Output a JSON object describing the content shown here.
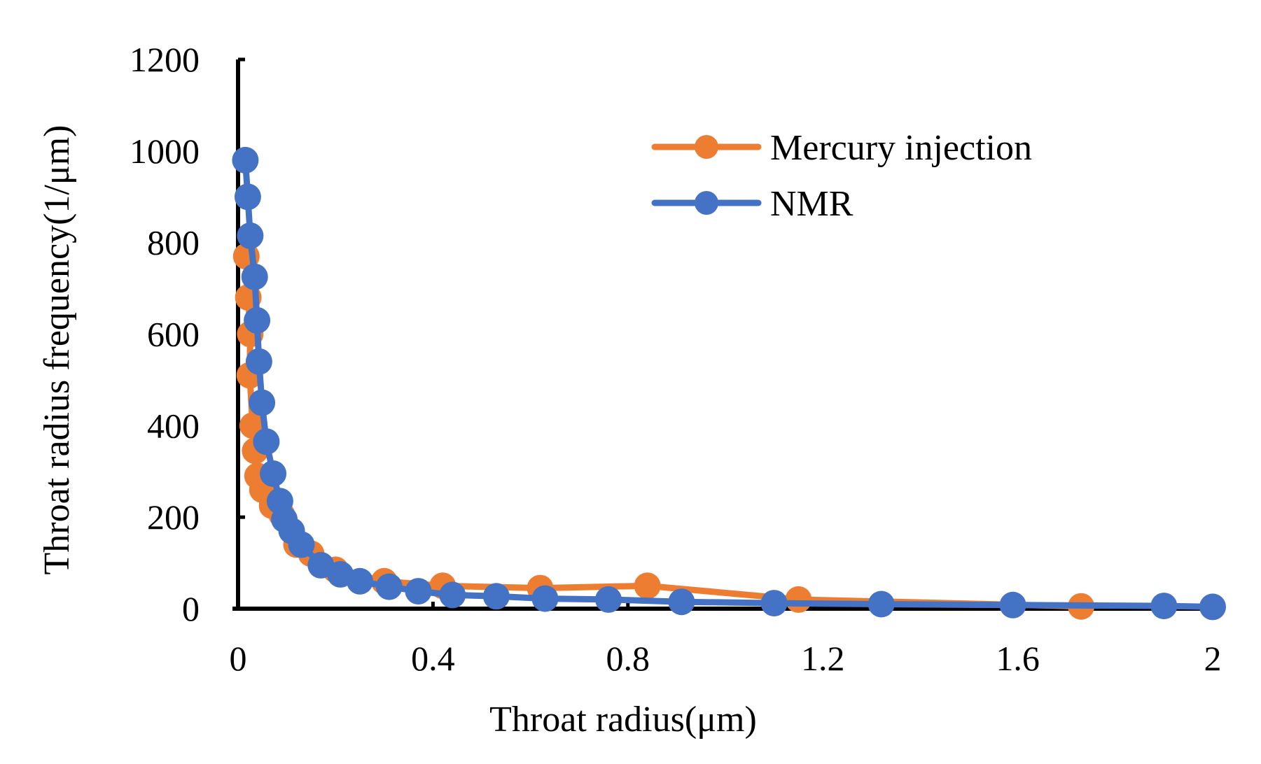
{
  "chart_data": {
    "type": "line",
    "title": "",
    "xlabel": "Throat radius(μm)",
    "ylabel": "Throat radius frequency(1/μm)",
    "xlim": [
      0,
      2
    ],
    "ylim": [
      0,
      1200
    ],
    "xticks": [
      0,
      0.4,
      0.8,
      1.2,
      1.6,
      2
    ],
    "xtick_labels": [
      "0",
      "0.4",
      "0.8",
      "1.2",
      "1.6",
      "2"
    ],
    "yticks": [
      0,
      200,
      400,
      600,
      800,
      1000,
      1200
    ],
    "ytick_labels": [
      "0",
      "200",
      "400",
      "600",
      "800",
      "1000",
      "1200"
    ],
    "grid": false,
    "legend_position": "top-right",
    "series": [
      {
        "name": "Mercury injection",
        "color": "#ED7D31",
        "marker": "circle",
        "x": [
          0.017,
          0.021,
          0.025,
          0.024,
          0.03,
          0.035,
          0.04,
          0.05,
          0.07,
          0.09,
          0.12,
          0.15,
          0.2,
          0.3,
          0.42,
          0.62,
          0.84,
          1.15,
          1.73
        ],
        "y": [
          770,
          680,
          600,
          510,
          400,
          345,
          290,
          260,
          225,
          205,
          140,
          120,
          85,
          60,
          50,
          45,
          50,
          20,
          5
        ]
      },
      {
        "name": "NMR",
        "color": "#4472C4",
        "marker": "circle",
        "x": [
          0.015,
          0.02,
          0.025,
          0.034,
          0.039,
          0.043,
          0.049,
          0.058,
          0.072,
          0.086,
          0.095,
          0.11,
          0.13,
          0.17,
          0.21,
          0.25,
          0.31,
          0.37,
          0.44,
          0.53,
          0.63,
          0.76,
          0.91,
          1.1,
          1.32,
          1.59,
          1.9,
          2.0
        ],
        "y": [
          980,
          900,
          815,
          725,
          630,
          540,
          450,
          365,
          295,
          235,
          195,
          170,
          140,
          95,
          75,
          60,
          48,
          38,
          30,
          27,
          22,
          20,
          15,
          12,
          10,
          8,
          6,
          4
        ]
      }
    ]
  }
}
